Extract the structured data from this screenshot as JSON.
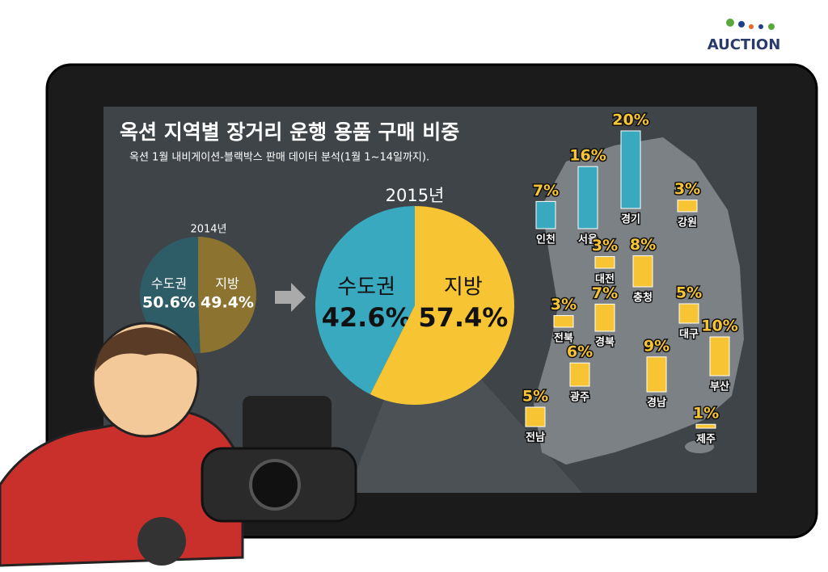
{
  "title": "옥션 지역별 장거리 운행 용품 구매 비중",
  "subtitle": "옥션 1월 내비게이션-블랙박스 판매 데이터 분석(1월 1~14일까지).",
  "logo": "AUCTION",
  "chart_data": [
    {
      "type": "pie",
      "title": "2014년",
      "categories": [
        "수도권",
        "지방"
      ],
      "values": [
        50.6,
        49.4
      ],
      "value_labels": [
        "50.6%",
        "49.4%"
      ],
      "colors": [
        "#2e5d68",
        "#8c7330"
      ]
    },
    {
      "type": "pie",
      "title": "2015년",
      "categories": [
        "수도권",
        "지방"
      ],
      "values": [
        42.6,
        57.4
      ],
      "value_labels": [
        "42.6%",
        "57.4%"
      ],
      "colors": [
        "#38a9be",
        "#f7c433"
      ]
    },
    {
      "type": "bar",
      "categories": [
        "인천",
        "서울",
        "경기",
        "강원",
        "대전",
        "충청",
        "전북",
        "경북",
        "대구",
        "부산",
        "광주",
        "경남",
        "전남",
        "제주"
      ],
      "values": [
        7,
        16,
        20,
        3,
        3,
        8,
        3,
        7,
        5,
        10,
        6,
        9,
        5,
        1
      ],
      "value_labels": [
        "7%",
        "16%",
        "20%",
        "3%",
        "3%",
        "8%",
        "3%",
        "7%",
        "5%",
        "10%",
        "6%",
        "9%",
        "5%",
        "1%"
      ],
      "colors": [
        "#38a9be",
        "#38a9be",
        "#38a9be",
        "#f7c433",
        "#f7c433",
        "#f7c433",
        "#f7c433",
        "#f7c433",
        "#f7c433",
        "#f7c433",
        "#f7c433",
        "#f7c433",
        "#f7c433",
        "#f7c433"
      ]
    }
  ]
}
